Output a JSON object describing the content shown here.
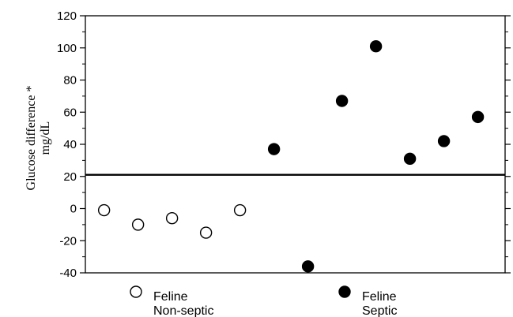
{
  "chart_data": {
    "type": "scatter",
    "ylabel_line1": "Glucose difference *",
    "ylabel_line2": "mg/dL",
    "ylim": [
      -40,
      120
    ],
    "yticks": [
      -40,
      -20,
      0,
      20,
      40,
      60,
      80,
      100,
      120
    ],
    "reference_line_y": 21,
    "grid": false,
    "series": [
      {
        "marker": "open-circle",
        "points": [
          {
            "x": 1,
            "y": -1
          },
          {
            "x": 2,
            "y": -10
          },
          {
            "x": 3,
            "y": -6
          },
          {
            "x": 4,
            "y": -15
          },
          {
            "x": 5,
            "y": -1
          }
        ]
      },
      {
        "marker": "filled-circle",
        "points": [
          {
            "x": 6,
            "y": 37
          },
          {
            "x": 7,
            "y": -36
          },
          {
            "x": 8,
            "y": 67
          },
          {
            "x": 9,
            "y": 101
          },
          {
            "x": 10,
            "y": 31
          },
          {
            "x": 11,
            "y": 42
          },
          {
            "x": 12,
            "y": 57
          }
        ]
      }
    ],
    "legend": [
      {
        "marker": "open-circle",
        "line1": "Feline",
        "line2": "Non-septic"
      },
      {
        "marker": "filled-circle",
        "line1": "Feline",
        "line2": "Septic"
      }
    ],
    "legend_position": "bottom"
  }
}
